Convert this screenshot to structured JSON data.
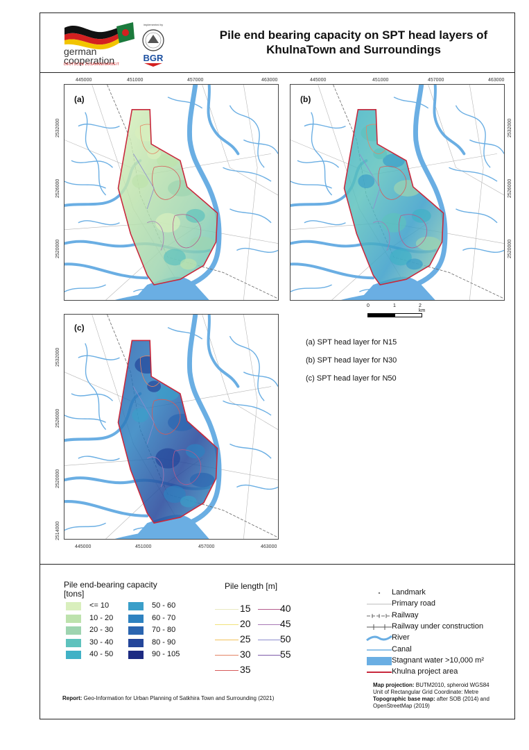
{
  "header": {
    "title_line1": "Pile end bearing capacity on SPT head layers of",
    "title_line2": "KhulnaTown and Surroundings",
    "logo_gc_line1": "german",
    "logo_gc_line2": "cooperation",
    "logo_gc_sub": "DEUTSCHE ZUSAMMENARBEIT",
    "logo_bgr_top": "implemented by",
    "logo_bgr": "BGR"
  },
  "colors": {
    "river": "#6aaee3",
    "project_boundary": "#c8283c",
    "road": "#b5b5b5",
    "railway": "#666666"
  },
  "maps": {
    "a": {
      "label": "(a)"
    },
    "b": {
      "label": "(b)"
    },
    "c": {
      "label": "(c)"
    }
  },
  "axes": {
    "x_ticks": [
      "445000",
      "451000",
      "457000",
      "463000"
    ],
    "y_ticks_top": [
      "2532000",
      "2526000",
      "2520000"
    ],
    "y_ticks_c": [
      "2532000",
      "2526000",
      "2520000",
      "2514000"
    ]
  },
  "scalebar": {
    "labels": [
      "0",
      "1",
      "2 km"
    ]
  },
  "captions": [
    "(a) SPT head layer for N15",
    "(b) SPT head layer for N30",
    "(c) SPT head layer for N50"
  ],
  "legend_capacity": {
    "title_line1": "Pile   end-bearing   capacity",
    "title_line2": "[tons]",
    "classes": [
      {
        "label": "<= 10",
        "color": "#d9efbd"
      },
      {
        "label": "10 - 20",
        "color": "#bde2ad"
      },
      {
        "label": "20 - 30",
        "color": "#9ed4b0"
      },
      {
        "label": "30 - 40",
        "color": "#5ec2bd"
      },
      {
        "label": "40 - 50",
        "color": "#40b1c6"
      },
      {
        "label": "50 - 60",
        "color": "#3a9ec9"
      },
      {
        "label": "60 - 70",
        "color": "#2e82c0"
      },
      {
        "label": "70 - 80",
        "color": "#2b65b0"
      },
      {
        "label": "80 - 90",
        "color": "#24469a"
      },
      {
        "label": "90 - 105",
        "color": "#1d2b82"
      }
    ]
  },
  "legend_pile": {
    "title": "Pile length [m]",
    "items": [
      {
        "label": "15",
        "color": "#e8e8c0"
      },
      {
        "label": "20",
        "color": "#f2e27a"
      },
      {
        "label": "25",
        "color": "#f2c15a"
      },
      {
        "label": "30",
        "color": "#e48464"
      },
      {
        "label": "35",
        "color": "#d65a5a"
      },
      {
        "label": "40",
        "color": "#b45a8c"
      },
      {
        "label": "45",
        "color": "#a678b4"
      },
      {
        "label": "50",
        "color": "#8c8ccd"
      },
      {
        "label": "55",
        "color": "#7c5aa8"
      }
    ]
  },
  "legend_ref": {
    "items": [
      {
        "label": "Landmark",
        "icon": "dot-icon"
      },
      {
        "label": "Primary road",
        "icon": "road-line"
      },
      {
        "label": "Railway",
        "icon": "railway-line"
      },
      {
        "label": "Railway under construction",
        "icon": "railway-construction-line"
      },
      {
        "label": "River",
        "icon": "river-line"
      },
      {
        "label": "Canal",
        "icon": "canal-line"
      },
      {
        "label": "Stagnant water >10,000 m²",
        "icon": "water-patch"
      },
      {
        "label": "Khulna project area",
        "icon": "boundary-line"
      }
    ]
  },
  "footer": {
    "report_bold": "Report:",
    "report_text": " Geo-Information for Urban Planning of Satkhira Town and Surrounding (2021)",
    "proj_bold": "Map projection:",
    "proj_text": " BUTM2010, spheroid WGS84",
    "grid_unit": "Unit of Rectangular Grid Coordinate: Metre",
    "topo_bold": "Topographic base map:",
    "topo_text": " after SOB (2014) and OpenStreetMap (2019)"
  }
}
